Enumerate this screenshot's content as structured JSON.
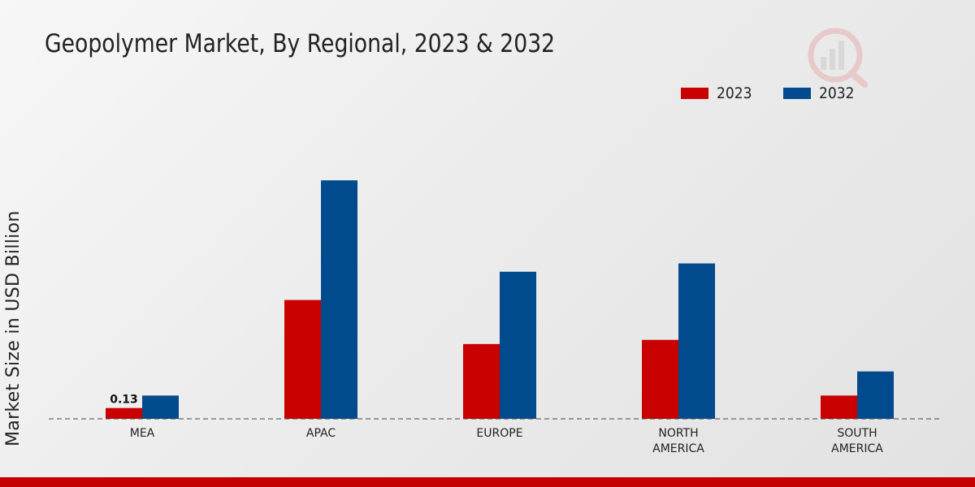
{
  "chart_data": {
    "type": "bar",
    "title": "Geopolymer Market, By Regional, 2023 & 2032",
    "xlabel": "",
    "ylabel": "Market Size in USD Billion",
    "categories": [
      [
        "MEA"
      ],
      [
        "APAC"
      ],
      [
        "EUROPE"
      ],
      [
        "NORTH",
        "AMERICA"
      ],
      [
        "SOUTH",
        "AMERICA"
      ]
    ],
    "series": [
      {
        "name": "2023",
        "color": "#c90000",
        "values": [
          0.13,
          1.43,
          0.9,
          0.95,
          0.28
        ]
      },
      {
        "name": "2032",
        "color": "#004a8d",
        "values": [
          0.28,
          2.87,
          1.77,
          1.87,
          0.57
        ]
      }
    ],
    "data_labels": [
      {
        "series": 0,
        "index": 0,
        "text": "0.13"
      }
    ],
    "ylim": [
      0,
      4.2
    ],
    "grid": false,
    "legend_position": "top-right"
  }
}
